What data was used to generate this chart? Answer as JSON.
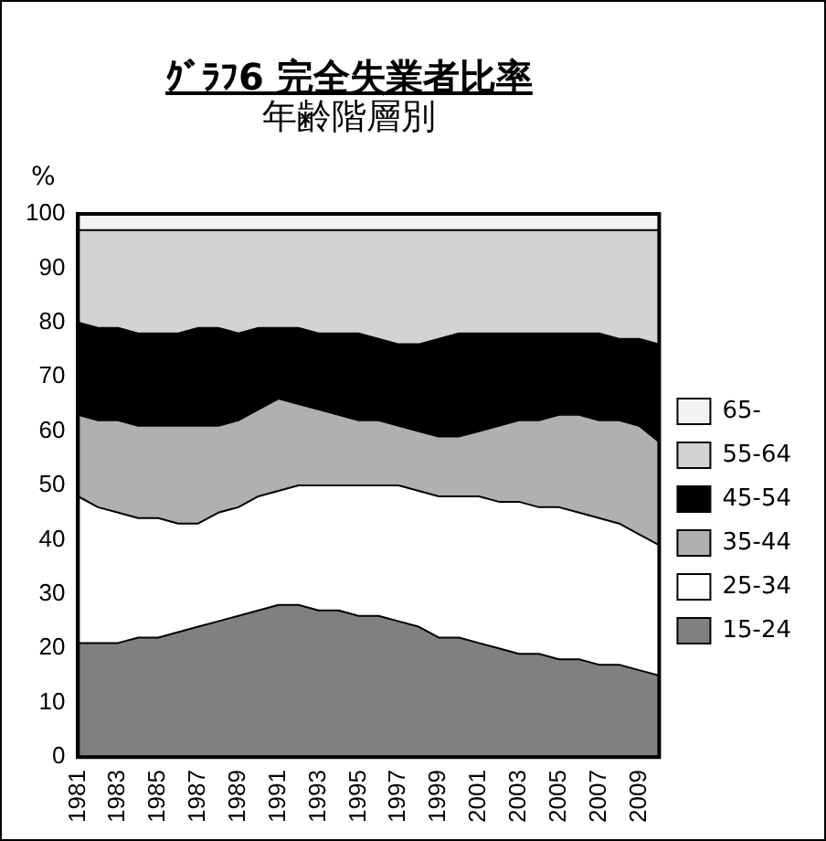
{
  "chart_data": {
    "type": "area",
    "stacked": true,
    "title": "ｸﾞﾗﾌ6 完全失業者比率",
    "subtitle": "年齢階層別",
    "ylabel": "%",
    "x": [
      1981,
      1982,
      1983,
      1984,
      1985,
      1986,
      1987,
      1988,
      1989,
      1990,
      1991,
      1992,
      1993,
      1994,
      1995,
      1996,
      1997,
      1998,
      1999,
      2000,
      2001,
      2002,
      2003,
      2004,
      2005,
      2006,
      2007,
      2008,
      2009,
      2010
    ],
    "xlim": [
      1981,
      2010
    ],
    "xticks": [
      1981,
      1983,
      1985,
      1987,
      1989,
      1991,
      1993,
      1995,
      1997,
      1999,
      2001,
      2003,
      2005,
      2007,
      2009
    ],
    "ylim": [
      0,
      100
    ],
    "yticks": [
      0,
      10,
      20,
      30,
      40,
      50,
      60,
      70,
      80,
      90,
      100
    ],
    "grid": false,
    "legend": "right",
    "marker": "none",
    "series": [
      {
        "name": "15-24",
        "color": "#808080",
        "values": [
          21,
          21,
          21,
          22,
          22,
          23,
          24,
          25,
          26,
          27,
          28,
          28,
          27,
          27,
          26,
          26,
          25,
          24,
          22,
          22,
          21,
          20,
          19,
          19,
          18,
          18,
          17,
          17,
          16,
          15
        ]
      },
      {
        "name": "25-34",
        "color": "#ffffff",
        "values": [
          27,
          25,
          24,
          22,
          22,
          20,
          19,
          20,
          20,
          21,
          21,
          22,
          23,
          23,
          24,
          24,
          25,
          25,
          26,
          26,
          27,
          27,
          28,
          27,
          28,
          27,
          27,
          26,
          25,
          24
        ]
      },
      {
        "name": "35-44",
        "color": "#b0b0b0",
        "values": [
          15,
          16,
          17,
          17,
          17,
          18,
          18,
          16,
          16,
          16,
          17,
          15,
          14,
          13,
          12,
          12,
          11,
          11,
          11,
          11,
          12,
          14,
          15,
          16,
          17,
          18,
          18,
          19,
          20,
          19
        ]
      },
      {
        "name": "45-54",
        "color": "#000000",
        "values": [
          17,
          17,
          17,
          17,
          17,
          17,
          18,
          18,
          16,
          15,
          13,
          14,
          14,
          15,
          16,
          15,
          15,
          16,
          18,
          19,
          18,
          17,
          16,
          16,
          15,
          15,
          16,
          15,
          16,
          18
        ]
      },
      {
        "name": "55-64",
        "color": "#d3d3d3",
        "values": [
          17,
          18,
          18,
          19,
          19,
          19,
          18,
          18,
          19,
          18,
          18,
          18,
          19,
          19,
          19,
          20,
          21,
          21,
          20,
          19,
          19,
          19,
          19,
          19,
          19,
          19,
          19,
          20,
          20,
          21
        ]
      },
      {
        "name": "65-",
        "color": "#f2f2f2",
        "values": [
          3,
          3,
          3,
          3,
          3,
          3,
          3,
          3,
          3,
          3,
          3,
          3,
          3,
          3,
          3,
          3,
          3,
          3,
          3,
          3,
          3,
          3,
          3,
          3,
          3,
          3,
          3,
          3,
          3,
          3
        ]
      }
    ]
  }
}
